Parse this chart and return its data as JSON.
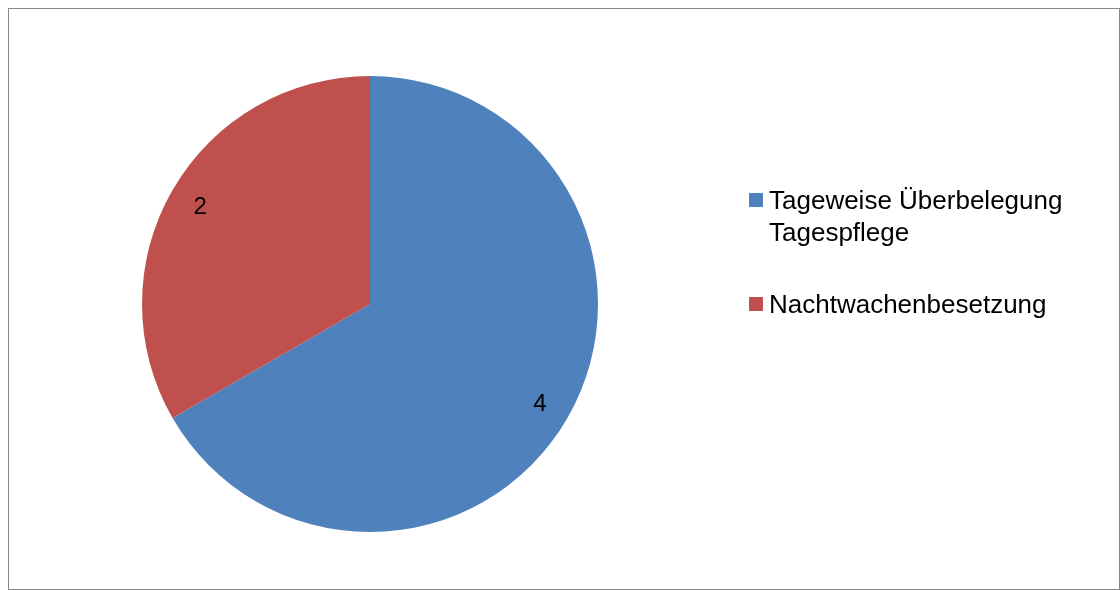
{
  "chart_data": {
    "type": "pie",
    "categories": [
      "Tageweise Überbelegung Tagespflege",
      "Nachtwachenbesetzung"
    ],
    "values": [
      4,
      2
    ],
    "colors": [
      "#4f81bd",
      "#c0504d"
    ],
    "data_labels": true,
    "legend": "right"
  }
}
